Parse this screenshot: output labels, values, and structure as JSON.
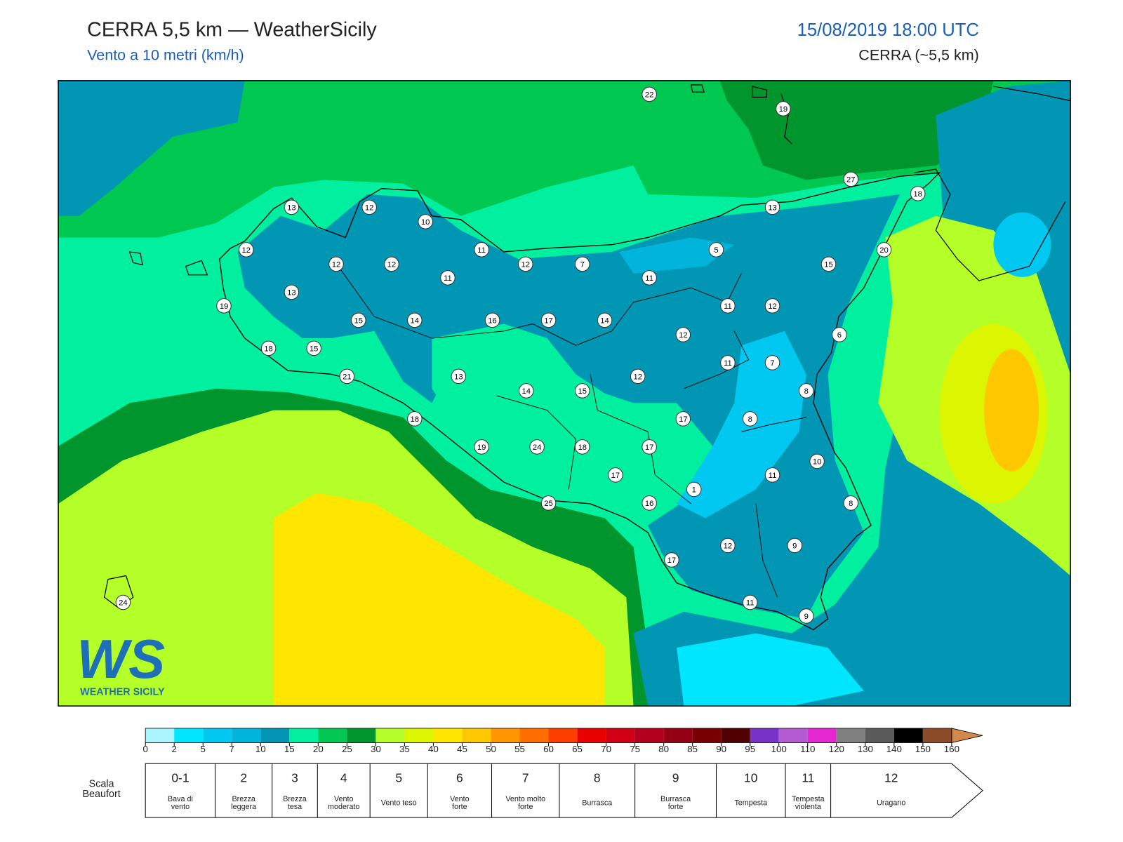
{
  "header": {
    "title": "CERRA 5,5 km — WeatherSicily",
    "subtitle": "Vento a 10 metri (km/h)",
    "datetime": "15/08/2019 18:00 UTC",
    "model": "CERRA (~5,5 km)"
  },
  "logo": {
    "mark": "WS",
    "name": "WEATHER SICILY"
  },
  "stations": [
    22,
    19,
    27,
    18,
    13,
    12,
    10,
    13,
    12,
    12,
    12,
    11,
    12,
    7,
    5,
    20,
    15,
    11,
    11,
    13,
    19,
    11,
    12,
    15,
    14,
    16,
    17,
    14,
    12,
    6,
    18,
    15,
    11,
    7,
    21,
    13,
    12,
    14,
    15,
    8,
    18,
    17,
    8,
    19,
    24,
    18,
    17,
    10,
    17,
    11,
    1,
    25,
    16,
    8,
    12,
    9,
    17,
    11,
    9,
    24
  ],
  "colorbar": {
    "ticks": [
      0,
      2,
      5,
      7,
      10,
      15,
      20,
      25,
      30,
      35,
      40,
      45,
      50,
      55,
      60,
      65,
      70,
      75,
      80,
      85,
      90,
      95,
      100,
      110,
      120,
      130,
      140,
      150,
      160
    ],
    "colors": [
      "#aaf5ff",
      "#00e6ff",
      "#00c8f0",
      "#00b4dc",
      "#0096b4",
      "#00f0a0",
      "#00c850",
      "#00962d",
      "#b4ff28",
      "#dcf500",
      "#ffe600",
      "#ffc800",
      "#ff9600",
      "#ff6e00",
      "#ff3c00",
      "#eb0000",
      "#d20014",
      "#b4001e",
      "#960014",
      "#780000",
      "#500000",
      "#7832c8",
      "#b45ad2",
      "#e628d2",
      "#808080",
      "#5a5a5a",
      "#000000",
      "#8c4b28"
    ],
    "extend_color": "#d2884b"
  },
  "beaufort": {
    "title": [
      "Scala",
      "Beaufort"
    ],
    "levels": [
      {
        "number": "0-1",
        "label": [
          "Bava di",
          "vento"
        ]
      },
      {
        "number": "2",
        "label": [
          "Brezza",
          "leggera"
        ]
      },
      {
        "number": "3",
        "label": [
          "Brezza",
          "tesa"
        ]
      },
      {
        "number": "4",
        "label": [
          "Vento",
          "moderato"
        ]
      },
      {
        "number": "5",
        "label": [
          "Vento teso"
        ]
      },
      {
        "number": "6",
        "label": [
          "Vento",
          "forte"
        ]
      },
      {
        "number": "7",
        "label": [
          "Vento molto",
          "forte"
        ]
      },
      {
        "number": "8",
        "label": [
          "Burrasca"
        ]
      },
      {
        "number": "9",
        "label": [
          "Burrasca",
          "forte"
        ]
      },
      {
        "number": "10",
        "label": [
          "Tempesta"
        ]
      },
      {
        "number": "11",
        "label": [
          "Tempesta",
          "violenta"
        ]
      },
      {
        "number": "12",
        "label": [
          "Uragano"
        ]
      }
    ]
  }
}
